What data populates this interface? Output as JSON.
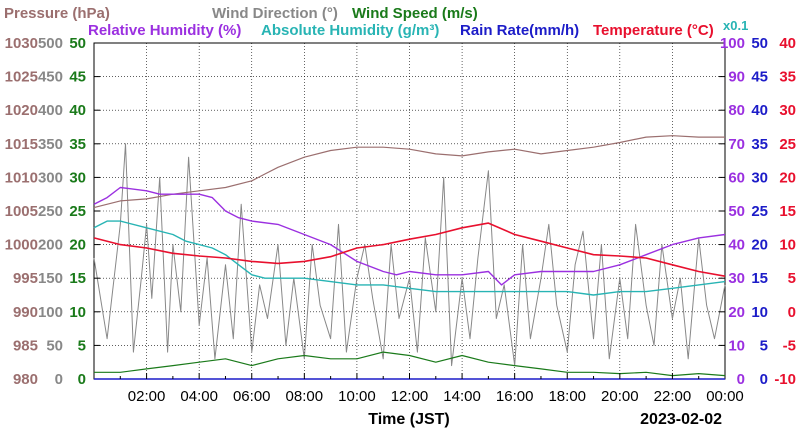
{
  "chart_data": {
    "type": "line",
    "date": "2023-02-02",
    "xlabel": "Time (JST)",
    "x_ticks": [
      "02:00",
      "04:00",
      "06:00",
      "08:00",
      "10:00",
      "12:00",
      "14:00",
      "16:00",
      "18:00",
      "20:00",
      "22:00",
      "00:00"
    ],
    "x_range_hours": [
      0,
      24
    ],
    "grid": true,
    "legend_position": "top",
    "legend": [
      {
        "label": "Pressure (hPa)",
        "color": "#9b6f6f"
      },
      {
        "label": "Wind Direction (°)",
        "color": "#888888"
      },
      {
        "label": "Wind Speed (m/s)",
        "color": "#1a7a1a"
      },
      {
        "label": "Relative Humidity (%)",
        "color": "#9b30e0"
      },
      {
        "label": "Absolute Humidity (g/m³)",
        "color": "#28b4b4"
      },
      {
        "label": "Rain Rate(mm/h)",
        "color": "#1c1cc8"
      },
      {
        "label": "Temperature (°C)",
        "color": "#e8102e"
      }
    ],
    "abs_humidity_scale_note": "x0.1",
    "axes": {
      "pressure": {
        "ylim": [
          980,
          1030
        ],
        "ticks": [
          "980",
          "985",
          "990",
          "995",
          "1000",
          "1005",
          "1010",
          "1015",
          "1020",
          "1025",
          "1030"
        ],
        "color": "#9b6f6f"
      },
      "wind_direction": {
        "ylim": [
          0,
          500
        ],
        "ticks": [
          "0",
          "50",
          "100",
          "150",
          "200",
          "250",
          "300",
          "350",
          "400",
          "450",
          "500"
        ],
        "color": "#888888"
      },
      "wind_speed": {
        "ylim": [
          0,
          50
        ],
        "ticks": [
          "0",
          "5",
          "10",
          "15",
          "20",
          "25",
          "30",
          "35",
          "40",
          "45",
          "50"
        ],
        "color": "#1a7a1a"
      },
      "relative_humidity": {
        "ylim": [
          0,
          100
        ],
        "ticks": [
          "0",
          "10",
          "20",
          "30",
          "40",
          "50",
          "60",
          "70",
          "80",
          "90",
          "100"
        ],
        "color": "#9b30e0"
      },
      "rain_rate": {
        "ylim": [
          0,
          50
        ],
        "ticks": [
          "0",
          "5",
          "10",
          "15",
          "20",
          "25",
          "30",
          "35",
          "40",
          "45",
          "50"
        ],
        "color": "#1c1cc8"
      },
      "temperature": {
        "ylim": [
          -10,
          40
        ],
        "ticks": [
          "-10",
          "-5",
          "0",
          "5",
          "10",
          "15",
          "20",
          "25",
          "30",
          "35",
          "40"
        ],
        "color": "#e8102e"
      }
    },
    "series": [
      {
        "name": "Pressure (hPa)",
        "axis": "pressure",
        "x": [
          0,
          1,
          2,
          3,
          4,
          5,
          6,
          6.5,
          7,
          8,
          9,
          10,
          11,
          12,
          13,
          14,
          15,
          16,
          17,
          18,
          19,
          20,
          21,
          22,
          23,
          24
        ],
        "y": [
          1005.5,
          1006.5,
          1006.8,
          1007.5,
          1008.0,
          1008.5,
          1009.5,
          1010.5,
          1011.5,
          1013.0,
          1014.0,
          1014.5,
          1014.5,
          1014.2,
          1013.5,
          1013.2,
          1013.8,
          1014.2,
          1013.5,
          1014.0,
          1014.5,
          1015.2,
          1016.0,
          1016.2,
          1016.0,
          1016.0
        ]
      },
      {
        "name": "Relative Humidity (%)",
        "axis": "relative_humidity",
        "x": [
          0,
          0.5,
          1,
          2,
          2.5,
          3,
          4,
          4.5,
          5,
          5.5,
          6,
          7,
          8,
          9,
          10,
          11,
          11.5,
          12,
          13,
          14,
          15,
          15.5,
          16,
          17,
          18,
          19,
          20,
          21,
          22,
          23,
          24
        ],
        "y": [
          52,
          54,
          57,
          56,
          55,
          55,
          55,
          54,
          50,
          48,
          47,
          46,
          43,
          40,
          35,
          32,
          31,
          32,
          31,
          31,
          32,
          28,
          31,
          32,
          32,
          32,
          34,
          37,
          40,
          42,
          43
        ]
      },
      {
        "name": "Absolute Humidity (g/m³)",
        "axis": "relative_humidity",
        "x": [
          0,
          0.5,
          1,
          2,
          3,
          3.5,
          4,
          4.5,
          5,
          5.5,
          6,
          6.5,
          7,
          8,
          9,
          10,
          11,
          12,
          13,
          14,
          15,
          16,
          17,
          18,
          19,
          20,
          21,
          22,
          23,
          24
        ],
        "y": [
          45,
          47,
          47,
          45,
          43,
          41,
          40,
          39,
          37,
          34,
          31,
          30,
          30,
          30,
          29,
          28,
          28,
          27,
          26,
          26,
          26,
          26,
          26,
          26,
          25,
          26,
          26,
          27,
          28,
          29
        ]
      },
      {
        "name": "Temperature (°C)",
        "axis": "temperature",
        "x": [
          0,
          1,
          2,
          3,
          4,
          5,
          6,
          7,
          8,
          9,
          10,
          11,
          12,
          13,
          14,
          15,
          16,
          17,
          18,
          19,
          20,
          21,
          22,
          23,
          24
        ],
        "y": [
          11.0,
          10.0,
          9.5,
          8.7,
          8.3,
          8.0,
          7.5,
          7.2,
          7.5,
          8.2,
          9.5,
          10.0,
          10.8,
          11.5,
          12.5,
          13.2,
          11.5,
          10.5,
          9.5,
          8.5,
          8.3,
          8.0,
          7.0,
          6.0,
          5.3
        ]
      },
      {
        "name": "Wind Direction (°)",
        "axis": "wind_direction",
        "x": [
          0,
          0.5,
          1,
          1.2,
          1.5,
          1.8,
          2,
          2.2,
          2.5,
          2.8,
          3,
          3.3,
          3.6,
          4,
          4.3,
          4.6,
          5,
          5.3,
          5.6,
          6,
          6.3,
          6.6,
          7,
          7.3,
          7.6,
          8,
          8.3,
          8.6,
          9,
          9.3,
          9.6,
          10,
          10.3,
          10.6,
          11,
          11.3,
          11.6,
          12,
          12.3,
          12.6,
          13,
          13.3,
          13.6,
          14,
          14.3,
          14.6,
          15,
          15.3,
          15.6,
          16,
          16.3,
          16.6,
          17,
          17.3,
          17.6,
          18,
          18.3,
          18.6,
          19,
          19.3,
          19.6,
          20,
          20.3,
          20.6,
          21,
          21.3,
          21.6,
          22,
          22.3,
          22.6,
          23,
          23.3,
          23.6,
          24
        ],
        "y": [
          180,
          60,
          230,
          350,
          40,
          150,
          230,
          120,
          300,
          40,
          200,
          100,
          330,
          80,
          180,
          30,
          170,
          60,
          260,
          40,
          140,
          90,
          200,
          50,
          150,
          30,
          200,
          110,
          60,
          230,
          40,
          150,
          200,
          120,
          30,
          200,
          90,
          150,
          40,
          210,
          100,
          300,
          20,
          150,
          60,
          180,
          310,
          90,
          140,
          20,
          200,
          60,
          150,
          230,
          110,
          40,
          170,
          220,
          60,
          200,
          30,
          150,
          60,
          230,
          110,
          50,
          200,
          90,
          150,
          30,
          210,
          110,
          60,
          140
        ]
      },
      {
        "name": "Wind Speed (m/s)",
        "axis": "wind_speed",
        "x": [
          0,
          1,
          2,
          3,
          4,
          5,
          6,
          7,
          8,
          9,
          10,
          11,
          12,
          13,
          14,
          15,
          16,
          17,
          18,
          19,
          20,
          21,
          22,
          23,
          24
        ],
        "y": [
          1.0,
          1.0,
          1.5,
          2.0,
          2.5,
          3.0,
          2.0,
          3.0,
          3.5,
          3.0,
          3.0,
          4.0,
          3.5,
          2.5,
          3.5,
          2.5,
          2.0,
          1.5,
          1.0,
          1.0,
          0.8,
          1.0,
          0.5,
          0.8,
          0.5
        ]
      },
      {
        "name": "Rain Rate(mm/h)",
        "axis": "rain_rate",
        "x": [
          0,
          24
        ],
        "y": [
          0,
          0
        ]
      }
    ]
  }
}
